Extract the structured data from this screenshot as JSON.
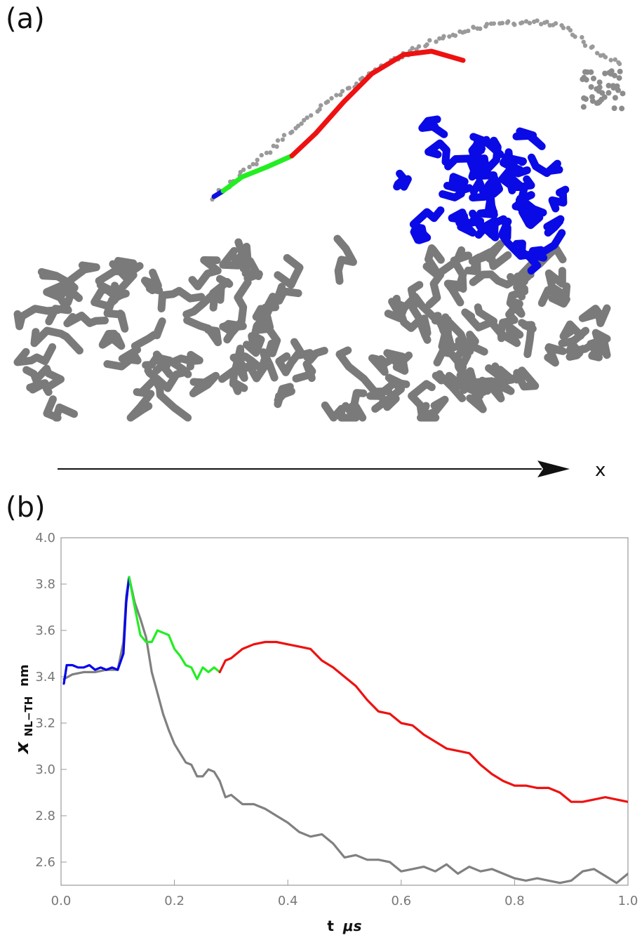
{
  "panel_a": {
    "label": "(a)",
    "axis_label": "x",
    "colors": {
      "trail": "#999999",
      "motor_head": "#0000ee",
      "filament": "#777777",
      "phase_1": "#1010dd",
      "phase_2": "#22ee22",
      "phase_3": "#ee1111"
    }
  },
  "panel_b": {
    "label": "(b)"
  },
  "chart_data": {
    "type": "line",
    "xlabel_main": "t",
    "xlabel_unit": "μs",
    "ylabel_main": "x",
    "ylabel_sub": "NL−TH",
    "ylabel_unit": "nm",
    "xlim": [
      0.0,
      1.0
    ],
    "ylim": [
      2.5,
      4.0
    ],
    "xticks": [
      "0.0",
      "0.2",
      "0.4",
      "0.6",
      "0.8",
      "1.0"
    ],
    "yticks": [
      "2.6",
      "2.8",
      "3.0",
      "3.2",
      "3.4",
      "3.6",
      "3.8",
      "4.0"
    ],
    "grid": false,
    "series": [
      {
        "color": "#808080",
        "x": [
          0.005,
          0.02,
          0.04,
          0.06,
          0.08,
          0.1,
          0.11,
          0.115,
          0.12,
          0.13,
          0.14,
          0.15,
          0.16,
          0.17,
          0.18,
          0.19,
          0.2,
          0.21,
          0.22,
          0.23,
          0.24,
          0.25,
          0.26,
          0.27,
          0.28,
          0.29,
          0.3,
          0.32,
          0.34,
          0.36,
          0.38,
          0.4,
          0.42,
          0.44,
          0.46,
          0.48,
          0.5,
          0.52,
          0.54,
          0.56,
          0.58,
          0.6,
          0.62,
          0.64,
          0.66,
          0.68,
          0.7,
          0.72,
          0.74,
          0.76,
          0.78,
          0.8,
          0.82,
          0.84,
          0.86,
          0.88,
          0.9,
          0.92,
          0.94,
          0.96,
          0.98,
          1.0
        ],
        "y": [
          3.39,
          3.41,
          3.42,
          3.42,
          3.43,
          3.43,
          3.55,
          3.75,
          3.83,
          3.72,
          3.65,
          3.57,
          3.42,
          3.33,
          3.24,
          3.17,
          3.11,
          3.07,
          3.03,
          3.02,
          2.97,
          2.97,
          3.0,
          2.99,
          2.95,
          2.88,
          2.89,
          2.85,
          2.85,
          2.83,
          2.8,
          2.77,
          2.73,
          2.71,
          2.72,
          2.68,
          2.62,
          2.63,
          2.61,
          2.61,
          2.6,
          2.56,
          2.57,
          2.58,
          2.56,
          2.59,
          2.55,
          2.58,
          2.56,
          2.57,
          2.55,
          2.53,
          2.52,
          2.53,
          2.52,
          2.51,
          2.52,
          2.56,
          2.57,
          2.54,
          2.51,
          2.55
        ]
      },
      {
        "color": "#0000ee",
        "x": [
          0.005,
          0.01,
          0.02,
          0.03,
          0.04,
          0.05,
          0.06,
          0.07,
          0.08,
          0.09,
          0.1,
          0.11,
          0.115,
          0.12
        ],
        "y": [
          3.37,
          3.45,
          3.45,
          3.44,
          3.44,
          3.45,
          3.43,
          3.44,
          3.43,
          3.44,
          3.43,
          3.5,
          3.72,
          3.83
        ]
      },
      {
        "color": "#22ee22",
        "x": [
          0.12,
          0.13,
          0.14,
          0.15,
          0.16,
          0.17,
          0.18,
          0.19,
          0.2,
          0.21,
          0.22,
          0.23,
          0.24,
          0.25,
          0.26,
          0.27,
          0.28
        ],
        "y": [
          3.83,
          3.7,
          3.58,
          3.55,
          3.55,
          3.6,
          3.59,
          3.58,
          3.52,
          3.49,
          3.45,
          3.44,
          3.39,
          3.44,
          3.42,
          3.44,
          3.42
        ]
      },
      {
        "color": "#ee1111",
        "x": [
          0.28,
          0.29,
          0.3,
          0.32,
          0.34,
          0.36,
          0.38,
          0.4,
          0.42,
          0.44,
          0.46,
          0.48,
          0.5,
          0.52,
          0.54,
          0.56,
          0.58,
          0.6,
          0.62,
          0.64,
          0.66,
          0.68,
          0.7,
          0.72,
          0.74,
          0.76,
          0.78,
          0.8,
          0.82,
          0.84,
          0.86,
          0.88,
          0.9,
          0.92,
          0.94,
          0.96,
          0.98,
          1.0
        ],
        "y": [
          3.42,
          3.47,
          3.48,
          3.52,
          3.54,
          3.55,
          3.55,
          3.54,
          3.53,
          3.52,
          3.47,
          3.44,
          3.4,
          3.36,
          3.3,
          3.25,
          3.24,
          3.2,
          3.19,
          3.15,
          3.12,
          3.09,
          3.08,
          3.07,
          3.02,
          2.98,
          2.95,
          2.93,
          2.93,
          2.92,
          2.92,
          2.9,
          2.86,
          2.86,
          2.87,
          2.88,
          2.87,
          2.86
        ]
      }
    ]
  }
}
